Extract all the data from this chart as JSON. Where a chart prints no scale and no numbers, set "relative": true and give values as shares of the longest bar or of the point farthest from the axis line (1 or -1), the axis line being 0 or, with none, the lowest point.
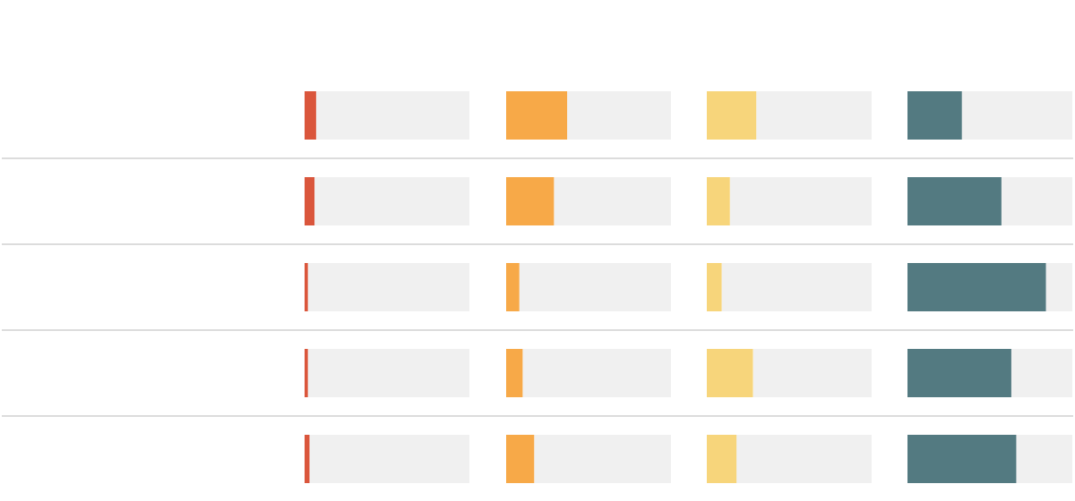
{
  "chart_data": [
    {
      "type": "bar",
      "orientation": "horizontal",
      "stacked": true,
      "relative": true,
      "grid": "y",
      "categories": [
        null,
        null,
        null,
        null,
        null
      ],
      "series": [
        {
          "color": "#da563c",
          "values": [
            0.07,
            0.06,
            0.02,
            0.02,
            0.03
          ]
        },
        {
          "color": "#f0f0f0",
          "values": [
            0.93,
            0.94,
            0.98,
            0.98,
            0.97
          ]
        }
      ]
    },
    {
      "type": "bar",
      "orientation": "horizontal",
      "stacked": true,
      "relative": true,
      "grid": "y",
      "categories": [
        null,
        null,
        null,
        null,
        null
      ],
      "series": [
        {
          "color": "#f7a948",
          "values": [
            0.37,
            0.29,
            0.08,
            0.1,
            0.17
          ]
        },
        {
          "color": "#f0f0f0",
          "values": [
            0.63,
            0.71,
            0.92,
            0.9,
            0.83
          ]
        }
      ]
    },
    {
      "type": "bar",
      "orientation": "horizontal",
      "stacked": true,
      "relative": true,
      "grid": "y",
      "categories": [
        null,
        null,
        null,
        null,
        null
      ],
      "series": [
        {
          "color": "#f7d57b",
          "values": [
            0.3,
            0.14,
            0.09,
            0.28,
            0.18
          ]
        },
        {
          "color": "#f0f0f0",
          "values": [
            0.7,
            0.86,
            0.91,
            0.72,
            0.82
          ]
        }
      ]
    },
    {
      "type": "bar",
      "orientation": "horizontal",
      "stacked": true,
      "relative": true,
      "grid": "y",
      "categories": [
        null,
        null,
        null,
        null,
        null
      ],
      "series": [
        {
          "color": "#537a81",
          "values": [
            0.33,
            0.57,
            0.84,
            0.63,
            0.66
          ]
        },
        {
          "color": "#f0f0f0",
          "values": [
            0.67,
            0.43,
            0.16,
            0.37,
            0.34
          ]
        }
      ]
    }
  ]
}
